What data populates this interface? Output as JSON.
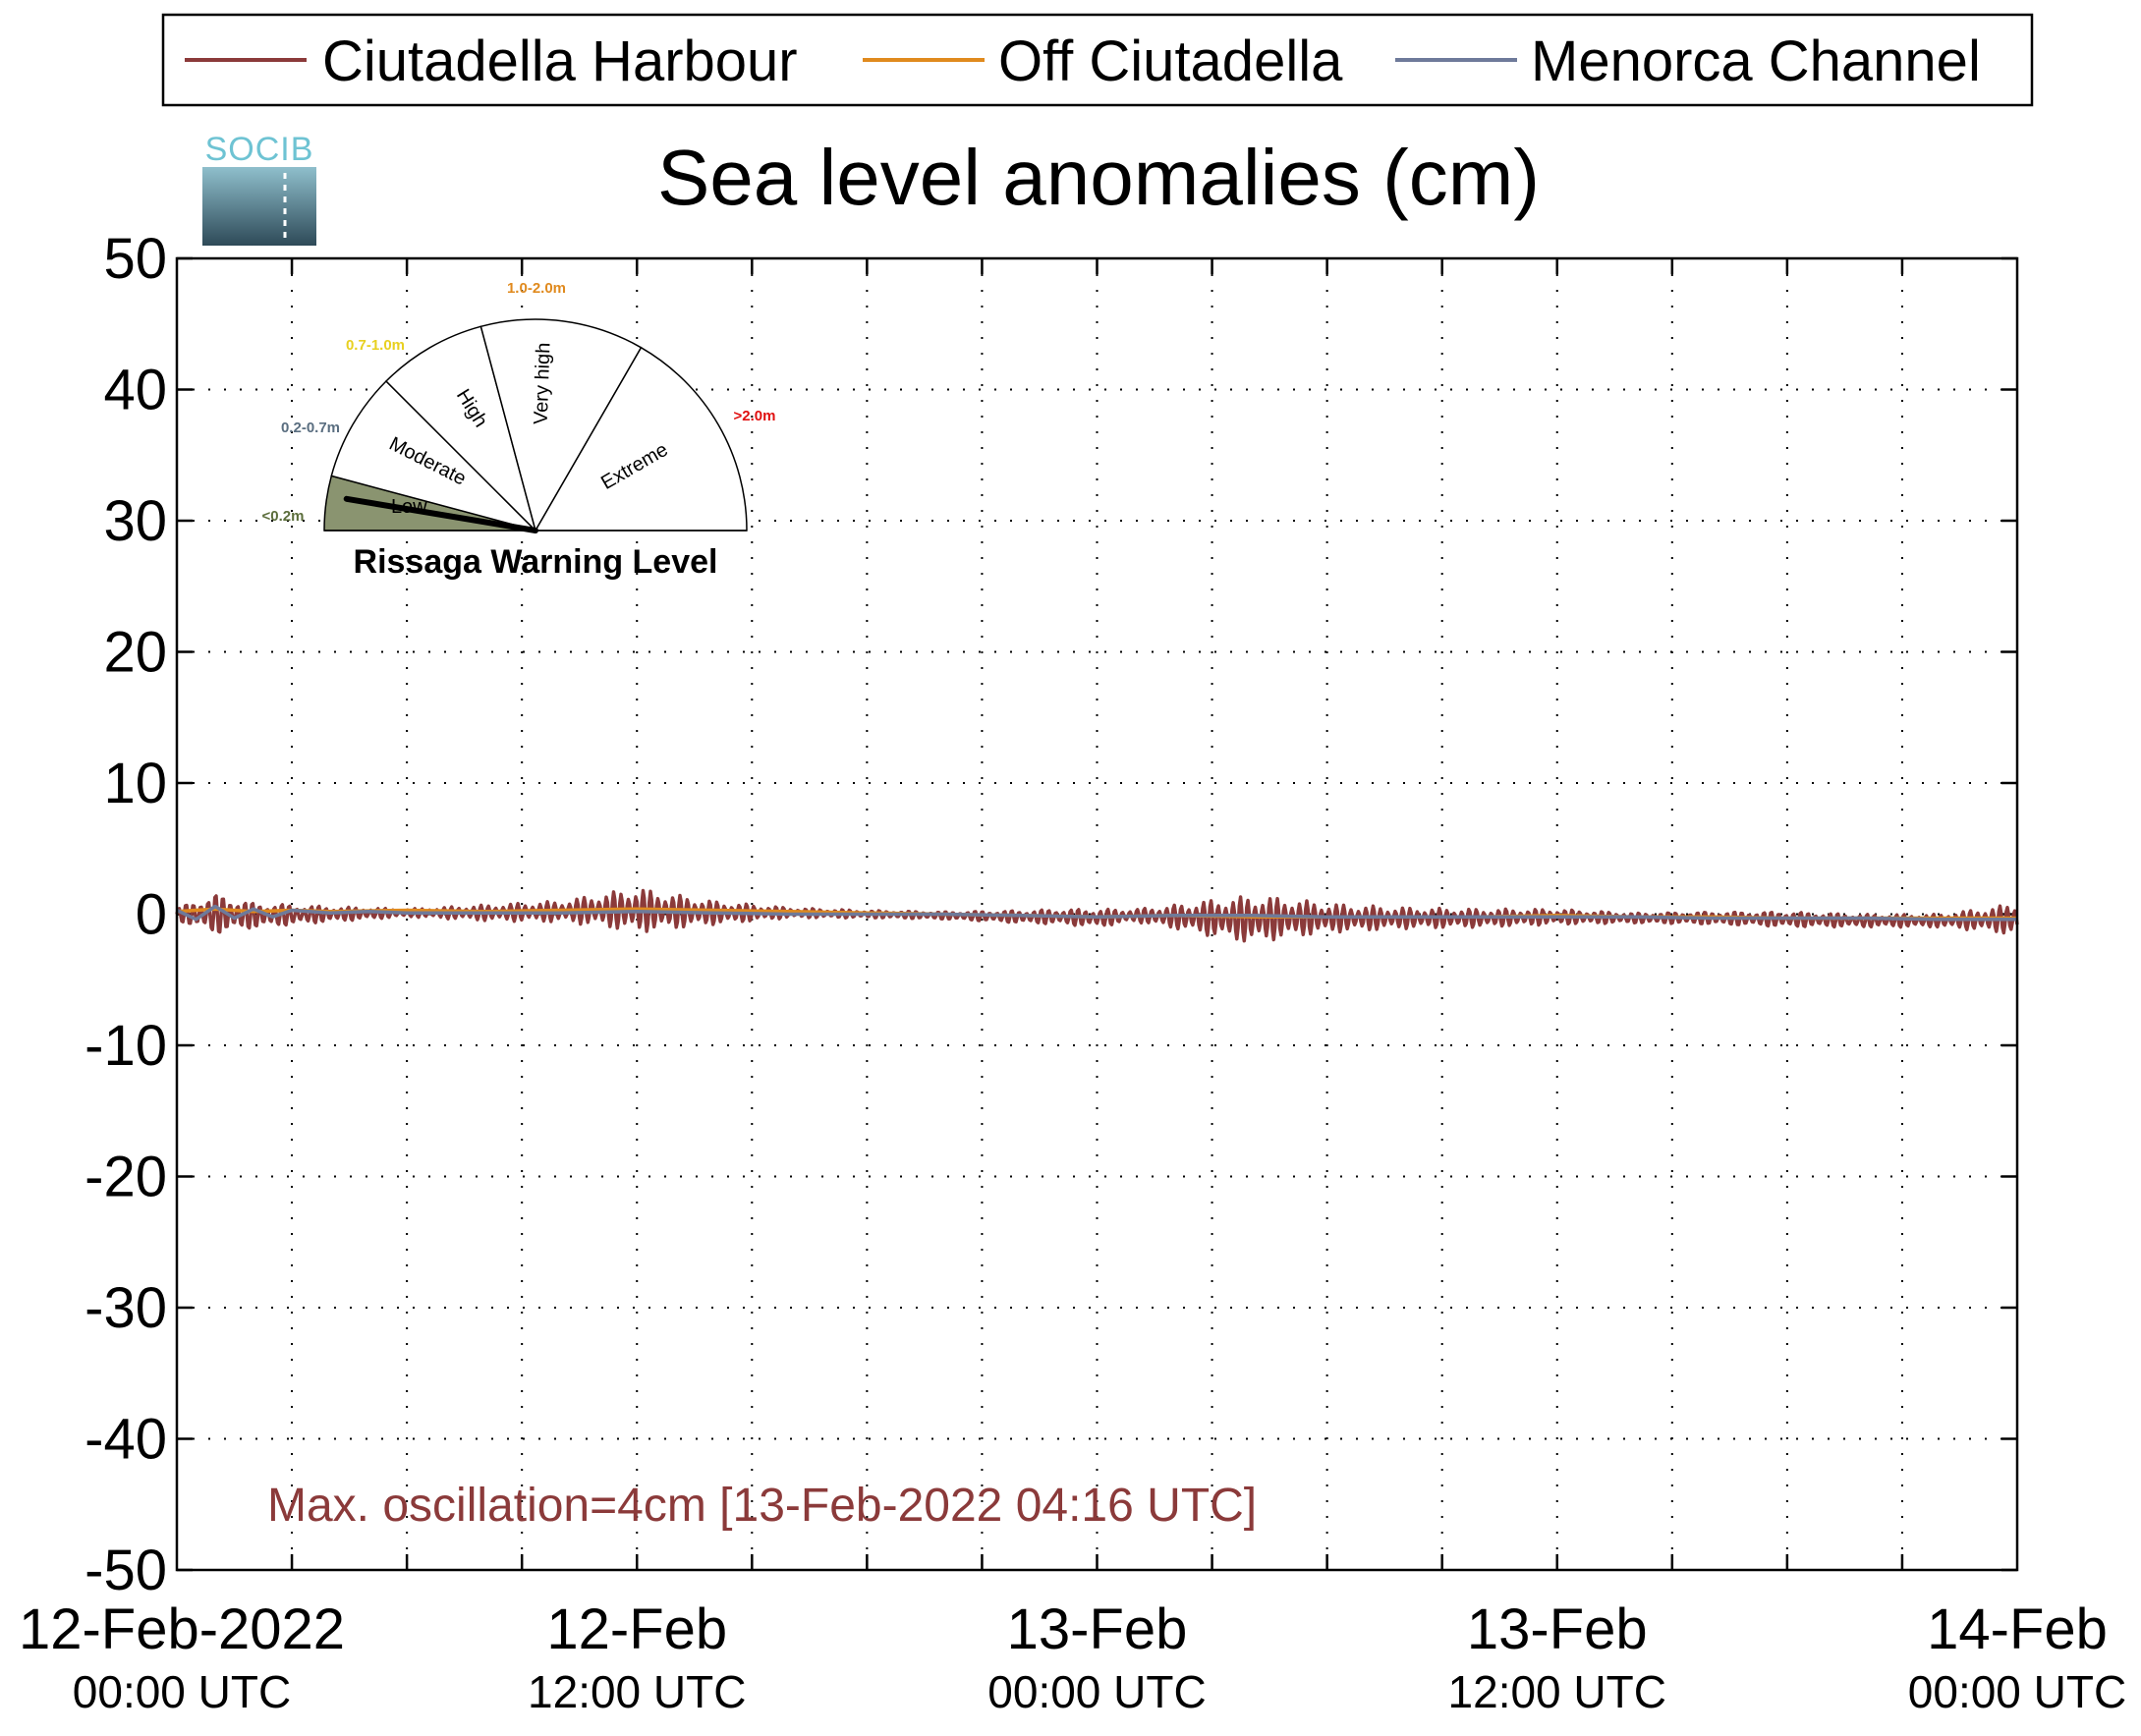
{
  "logo": {
    "text": "SOCIB"
  },
  "chart_data": {
    "type": "line",
    "title": "Sea level anomalies (cm)",
    "xlabel": "",
    "ylabel": "",
    "ylim": [
      -50,
      50
    ],
    "yticks": [
      50,
      40,
      30,
      20,
      10,
      0,
      -10,
      -20,
      -30,
      -40,
      -50
    ],
    "xlim_hours": [
      0,
      48
    ],
    "xtick_labels": [
      {
        "hour": 0,
        "date": "12-Feb-2022",
        "time": "00:00 UTC"
      },
      {
        "hour": 12,
        "date": "12-Feb",
        "time": "12:00 UTC"
      },
      {
        "hour": 24,
        "date": "13-Feb",
        "time": "00:00 UTC"
      },
      {
        "hour": 36,
        "date": "13-Feb",
        "time": "12:00 UTC"
      },
      {
        "hour": 48,
        "date": "14-Feb",
        "time": "00:00 UTC"
      }
    ],
    "grid": true,
    "legend_position": "top",
    "series": [
      {
        "name": "Ciutadella Harbour",
        "color": "#8b3a3a",
        "envelope_hours": [
          0,
          1,
          2,
          4,
          6,
          8,
          10,
          11,
          12,
          13,
          14,
          16,
          18,
          20,
          22,
          23,
          24,
          25,
          26,
          27,
          28,
          29,
          30,
          32,
          34,
          36,
          38,
          40,
          42,
          44,
          46,
          47.5,
          48
        ],
        "envelope_amplitude": [
          0.5,
          1.6,
          1.0,
          0.6,
          0.3,
          0.6,
          0.8,
          1.2,
          1.7,
          1.3,
          0.9,
          0.4,
          0.3,
          0.3,
          0.5,
          0.6,
          0.7,
          0.5,
          0.9,
          1.4,
          1.8,
          1.5,
          1.1,
          0.8,
          0.7,
          0.6,
          0.4,
          0.5,
          0.6,
          0.5,
          0.5,
          1.0,
          1.3
        ],
        "envelope_mean": [
          0.0,
          0.0,
          -0.1,
          0.0,
          0.1,
          0.1,
          0.2,
          0.3,
          0.3,
          0.2,
          0.1,
          0.1,
          0.0,
          -0.1,
          -0.2,
          -0.2,
          -0.3,
          -0.1,
          -0.2,
          -0.3,
          -0.4,
          -0.3,
          -0.3,
          -0.3,
          -0.3,
          -0.2,
          -0.3,
          -0.3,
          -0.4,
          -0.5,
          -0.5,
          -0.4,
          -0.4
        ]
      },
      {
        "name": "Off Ciutadella",
        "color": "#e08a1e",
        "x_hours": [
          0,
          1,
          2,
          3,
          4,
          6,
          8,
          10,
          12,
          14,
          16,
          18,
          20,
          22,
          24,
          26,
          28,
          30,
          32,
          34,
          36,
          38,
          40,
          42,
          44,
          46,
          48
        ],
        "values": [
          0.2,
          0.4,
          0.2,
          0.3,
          0.2,
          0.3,
          0.2,
          0.3,
          0.4,
          0.3,
          0.2,
          0.1,
          0.0,
          -0.1,
          -0.2,
          -0.1,
          -0.2,
          -0.2,
          -0.2,
          -0.2,
          -0.1,
          -0.2,
          -0.2,
          -0.3,
          -0.3,
          -0.3,
          -0.3
        ]
      },
      {
        "name": "Menorca Channel",
        "color": "#6e7a9a",
        "x_hours": [
          0,
          0.5,
          1,
          1.5,
          2,
          2.5,
          3,
          4,
          5,
          6,
          8,
          10,
          12,
          14,
          16,
          18,
          20,
          22,
          24,
          26,
          28,
          30,
          32,
          34,
          36,
          38,
          40,
          42,
          44,
          46,
          48
        ],
        "values": [
          0.3,
          -0.4,
          0.6,
          -0.3,
          0.4,
          -0.2,
          0.3,
          0.1,
          0.2,
          0.1,
          0.1,
          0.1,
          0.2,
          0.1,
          0.0,
          0.0,
          0.0,
          -0.1,
          -0.2,
          -0.1,
          -0.1,
          -0.2,
          -0.2,
          -0.2,
          -0.2,
          -0.2,
          -0.3,
          -0.3,
          -0.3,
          -0.4,
          -0.4
        ]
      }
    ],
    "annotation": "Max. oscillation=4cm [13-Feb-2022 04:16 UTC]",
    "annotation_color": "#8b3a3a"
  },
  "gauge": {
    "title": "Rissaga Warning Level",
    "indicator_level": "Low",
    "sectors": [
      {
        "label": "Low",
        "range": "<0.2m",
        "range_color": "#5c6e3c",
        "fill": "#8a9470"
      },
      {
        "label": "Moderate",
        "range": "0.2-0.7m",
        "range_color": "#5a6e80",
        "fill": "#ffffff"
      },
      {
        "label": "High",
        "range": "0.7-1.0m",
        "range_color": "#e8d020",
        "fill": "#ffffff"
      },
      {
        "label": "Very high",
        "range": "1.0-2.0m",
        "range_color": "#e08a1e",
        "fill": "#ffffff"
      },
      {
        "label": "Extreme",
        "range": ">2.0m",
        "range_color": "#e01010",
        "fill": "#ffffff"
      }
    ]
  }
}
